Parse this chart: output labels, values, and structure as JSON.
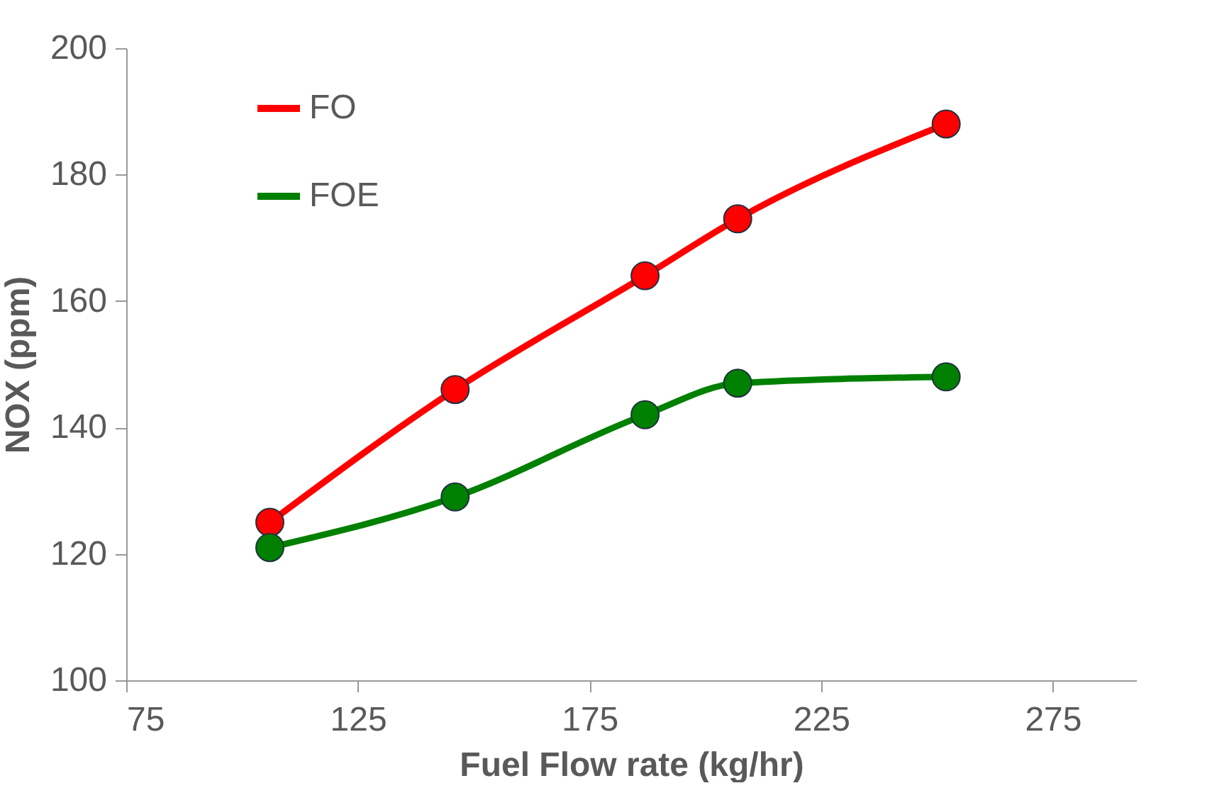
{
  "chart_data": {
    "type": "line",
    "xlabel": "Fuel Flow rate (kg/hr)",
    "ylabel": "NOX (ppm)",
    "x": [
      106,
      146,
      187,
      207,
      252
    ],
    "series": [
      {
        "name": "FO",
        "color": "#ff0000",
        "values": [
          125,
          146,
          164,
          173,
          188
        ]
      },
      {
        "name": "FOE",
        "color": "#008000",
        "values": [
          121,
          129,
          142,
          147,
          148
        ]
      }
    ],
    "xlim": [
      75,
      293
    ],
    "xticks": [
      75,
      125,
      175,
      225,
      275
    ],
    "ylim": [
      100,
      200
    ],
    "yticks": [
      100,
      120,
      140,
      160,
      180,
      200
    ],
    "grid": false,
    "legend": "top left",
    "marker": "circle",
    "line_style": "solid"
  }
}
